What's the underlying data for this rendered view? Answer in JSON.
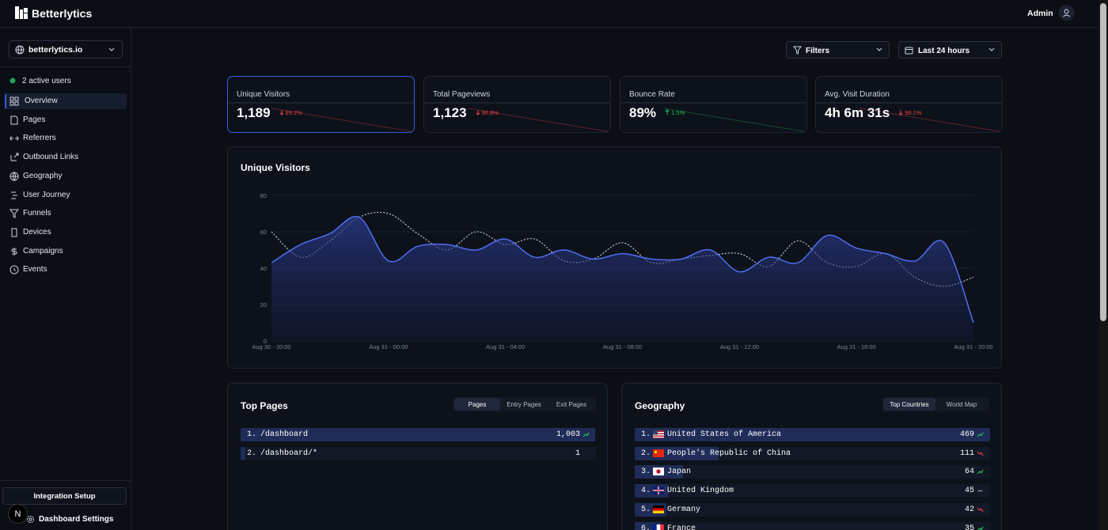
{
  "header": {
    "brand": "Betterlytics",
    "user": "Admin"
  },
  "sidebar": {
    "site": "betterlytics.io",
    "active_users": "2 active users",
    "nav": [
      "Overview",
      "Pages",
      "Referrers",
      "Outbound Links",
      "Geography",
      "User Journey",
      "Funnels",
      "Devices",
      "Campaigns",
      "Events"
    ],
    "active_nav": 0,
    "integration": "Integration Setup",
    "settings": "Dashboard Settings",
    "dev_badge": "N"
  },
  "toolbar": {
    "filters": "Filters",
    "range": "Last 24 hours"
  },
  "stats": [
    {
      "title": "Unique Visitors",
      "value": "1,189",
      "change": "99.2%",
      "trend": "down"
    },
    {
      "title": "Total Pageviews",
      "value": "1,123",
      "change": "96.8%",
      "trend": "down"
    },
    {
      "title": "Bounce Rate",
      "value": "89%",
      "change": "1.5%",
      "trend": "up"
    },
    {
      "title": "Avg. Visit Duration",
      "value": "4h 6m 31s",
      "change": "99.1%",
      "trend": "down"
    }
  ],
  "active_stat": 0,
  "chart_data": {
    "type": "line",
    "title": "Unique Visitors",
    "categories": [
      "Aug 30 - 20:00",
      null,
      null,
      null,
      "Aug 31 - 00:00",
      null,
      null,
      null,
      "Aug 31 - 04:00",
      null,
      null,
      null,
      "Aug 31 - 08:00",
      null,
      null,
      null,
      "Aug 31 - 12:00",
      null,
      null,
      null,
      "Aug 31 - 16:00",
      null,
      null,
      null,
      "Aug 31 - 20:00"
    ],
    "series": [
      {
        "color": "#4f6ef0",
        "style": "solid",
        "fill": true,
        "values": [
          43,
          53,
          59,
          68,
          44,
          52,
          53,
          50,
          56,
          46,
          50,
          45,
          48,
          45,
          45,
          50,
          38,
          46,
          43,
          58,
          51,
          48,
          44,
          54,
          10
        ]
      },
      {
        "color": "#cfd6e4",
        "style": "dotted",
        "fill": false,
        "values": [
          60,
          46,
          55,
          68,
          70,
          59,
          50,
          60,
          53,
          56,
          44,
          45,
          54,
          43,
          45,
          47,
          48,
          41,
          55,
          43,
          41,
          48,
          35,
          30,
          35
        ]
      }
    ],
    "ylim": [
      0,
      80
    ],
    "yticks": [
      0,
      20,
      40,
      60,
      80
    ],
    "grid": true
  },
  "top_pages": {
    "title": "Top Pages",
    "tabs": [
      "Pages",
      "Entry Pages",
      "Exit Pages"
    ],
    "active_tab": 0,
    "rows": [
      {
        "rank": "1.",
        "label": "/dashboard",
        "value": "1,003",
        "trend": "up"
      },
      {
        "rank": "2.",
        "label": "/dashboard/*",
        "value": "1",
        "trend": "none"
      }
    ]
  },
  "geography": {
    "title": "Geography",
    "tabs": [
      "Top Countries",
      "World Map"
    ],
    "active_tab": 0,
    "rows": [
      {
        "rank": "1.",
        "flag": "us",
        "label": "United States of America",
        "value": "469",
        "trend": "up"
      },
      {
        "rank": "2.",
        "flag": "cn",
        "label": "People's Republic of China",
        "value": "111",
        "trend": "down"
      },
      {
        "rank": "3.",
        "flag": "jp",
        "label": "Japan",
        "value": "64",
        "trend": "up"
      },
      {
        "rank": "4.",
        "flag": "gb",
        "label": "United Kingdom",
        "value": "45",
        "trend": "flat"
      },
      {
        "rank": "5.",
        "flag": "de",
        "label": "Germany",
        "value": "42",
        "trend": "down"
      },
      {
        "rank": "6.",
        "flag": "fr",
        "label": "France",
        "value": "35",
        "trend": "up"
      }
    ]
  }
}
